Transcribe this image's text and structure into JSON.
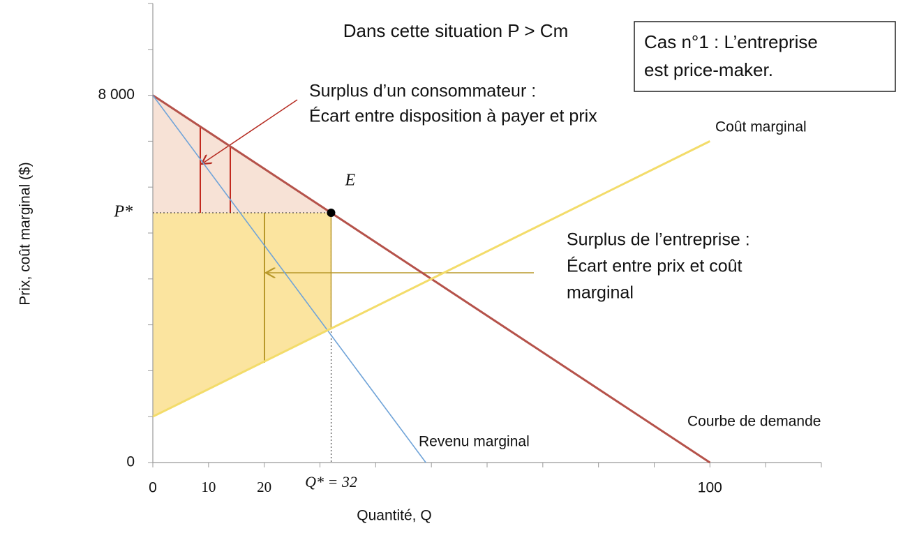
{
  "chart_data": {
    "type": "line",
    "title": "Dans cette situation P > Cm",
    "x_label": "Quantité, Q",
    "y_label": "Prix, coût marginal ($)",
    "xlim": [
      0,
      120
    ],
    "ylim": [
      0,
      10000
    ],
    "xticks": [
      0,
      10,
      20,
      {
        "value": 30,
        "label": null
      },
      {
        "value": 40,
        "label": null
      },
      {
        "value": 50,
        "label": null
      },
      {
        "value": 60,
        "label": null
      },
      {
        "value": 70,
        "label": null
      },
      {
        "value": 80,
        "label": null
      },
      {
        "value": 90,
        "label": null
      },
      100,
      {
        "value": 110,
        "label": null
      },
      {
        "value": 120,
        "label": null
      }
    ],
    "yticks": [
      0,
      {
        "value": 1000,
        "label": null
      },
      {
        "value": 2000,
        "label": null
      },
      {
        "value": 3000,
        "label": null
      },
      {
        "value": 4000,
        "label": null
      },
      {
        "value": 5000,
        "label": null
      },
      {
        "value": 6000,
        "label": null
      },
      {
        "value": 7000,
        "label": null
      },
      {
        "value": 8000,
        "label": "8 000"
      },
      {
        "value": 9000,
        "label": null
      },
      {
        "value": 10000,
        "label": null
      }
    ],
    "series": [
      {
        "name": "Courbe de demande",
        "color": "#b5524a",
        "x": [
          0,
          100
        ],
        "values": [
          8000,
          0
        ]
      },
      {
        "name": "Revenu marginal",
        "color": "#6fa3d8",
        "x": [
          0,
          49
        ],
        "values": [
          8000,
          0
        ]
      },
      {
        "name": "Coût marginal",
        "color": "#f3dc6a",
        "x": [
          0,
          100
        ],
        "values": [
          1000,
          7000
        ]
      }
    ],
    "equilibrium": {
      "label": "E",
      "x": 32,
      "y": 5440,
      "x_label": "Q* = 32",
      "y_label": "P*"
    },
    "consumer_surplus_note": [
      "Surplus d’un consommateur :",
      "Écart entre disposition à payer et prix"
    ],
    "firm_surplus_note": [
      "Surplus de l’entreprise :",
      "Écart entre prix et coût",
      "marginal"
    ],
    "case_box": [
      "Cas n°1 : L’entreprise",
      "est price-maker."
    ]
  }
}
